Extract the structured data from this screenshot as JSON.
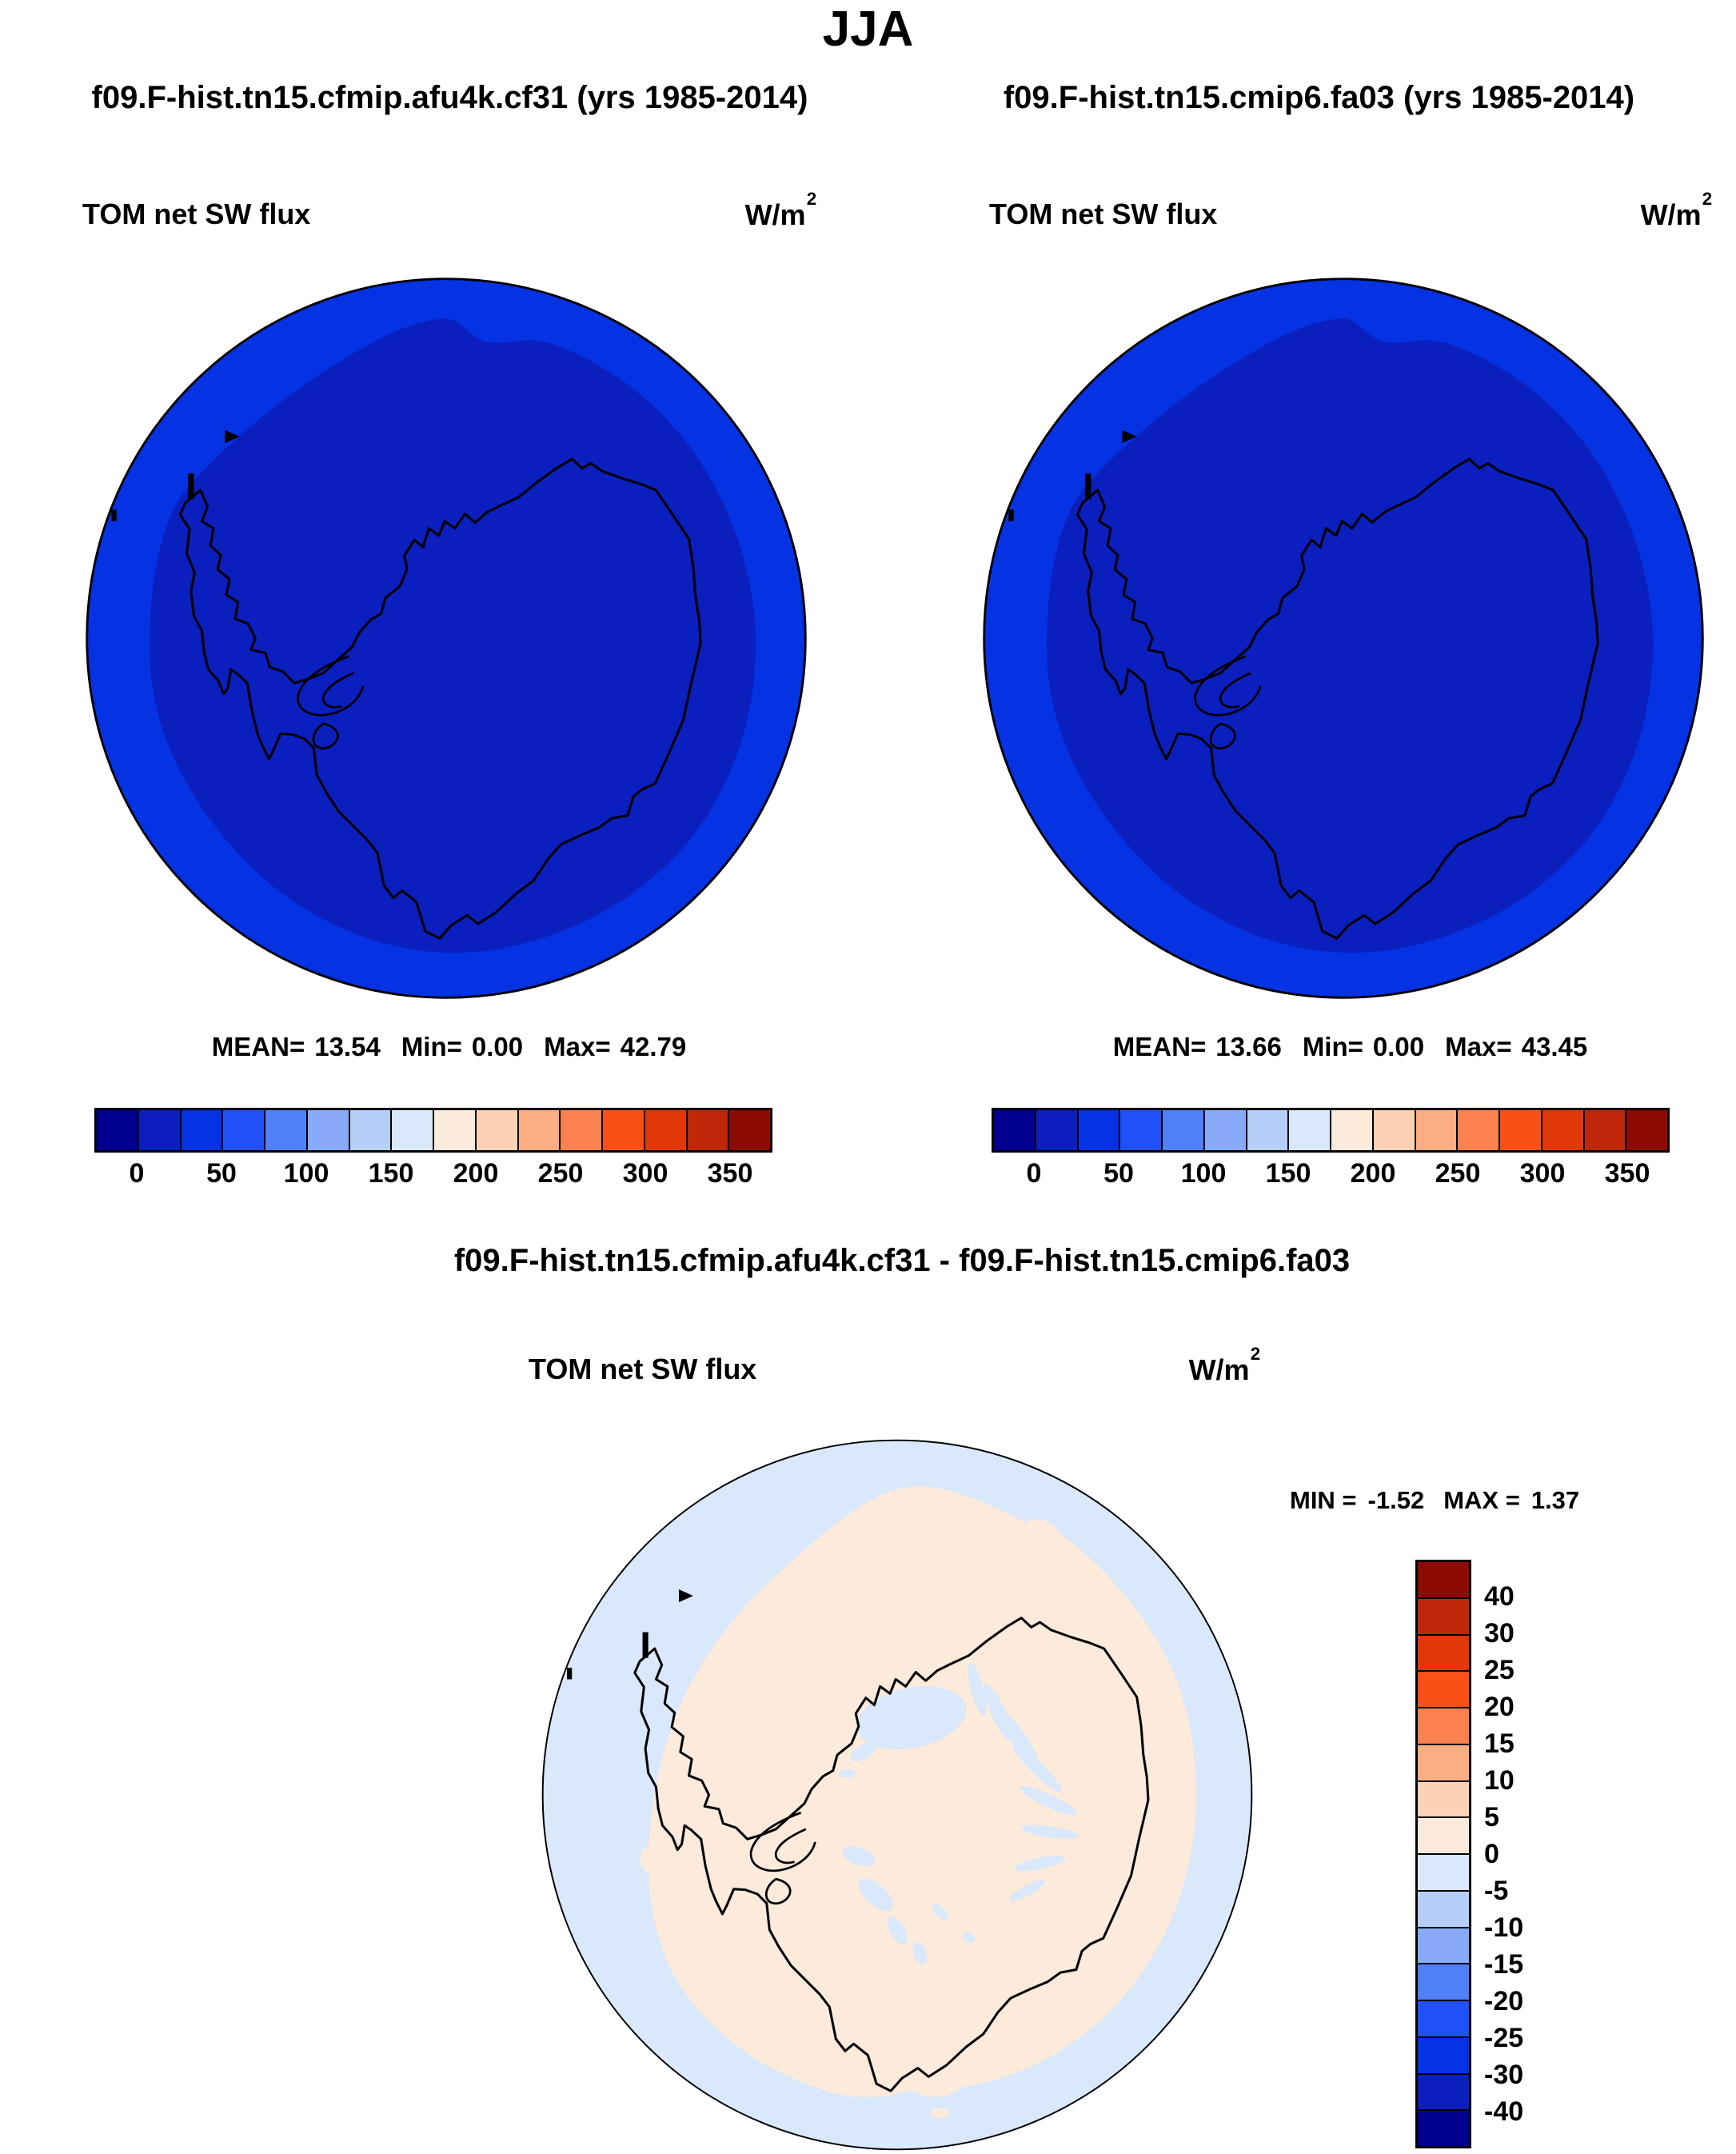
{
  "page_title": "JJA",
  "panels": [
    {
      "id": "model_a",
      "subtitle": "f09.F-hist.tn15.cfmip.afu4k.cf31 (yrs 1985-2014)",
      "var_label": "TOM net SW flux",
      "units_base": "W/m",
      "units_exp": "2",
      "stats": {
        "mean_label": "MEAN=",
        "mean": "13.54",
        "min_label": "Min=",
        "min": "0.00",
        "max_label": "Max=",
        "max": "42.79"
      },
      "colorbar_ticks": [
        "0",
        "50",
        "100",
        "150",
        "200",
        "250",
        "300",
        "350"
      ]
    },
    {
      "id": "model_b",
      "subtitle": "f09.F-hist.tn15.cmip6.fa03 (yrs 1985-2014)",
      "var_label": "TOM net SW flux",
      "units_base": "W/m",
      "units_exp": "2",
      "stats": {
        "mean_label": "MEAN=",
        "mean": "13.66",
        "min_label": "Min=",
        "min": "0.00",
        "max_label": "Max=",
        "max": "43.45"
      },
      "colorbar_ticks": [
        "0",
        "50",
        "100",
        "150",
        "200",
        "250",
        "300",
        "350"
      ]
    }
  ],
  "difference": {
    "title": "f09.F-hist.tn15.cfmip.afu4k.cf31 - f09.F-hist.tn15.cmip6.fa03",
    "var_label": "TOM net SW flux",
    "units_base": "W/m",
    "units_exp": "2",
    "stats": {
      "min_label": "MIN =",
      "min": "-1.52",
      "max_label": "MAX =",
      "max": "1.37"
    },
    "colorbar_labels": [
      "40",
      "30",
      "25",
      "20",
      "15",
      "10",
      "5",
      "0",
      "-5",
      "-10",
      "-15",
      "-20",
      "-25",
      "-30",
      "-40"
    ]
  },
  "palette": {
    "diverging_blue_to_red": [
      "#000090",
      "#0A1FBE",
      "#0533E3",
      "#2050F8",
      "#5080F8",
      "#88AAF8",
      "#B5CFF8",
      "#D9E8FB",
      "#FCEADB",
      "#FBD2B4",
      "#FCAE83",
      "#FC8150",
      "#FA5018",
      "#E23708",
      "#C02708",
      "#8E0B04"
    ],
    "map_interior_index": 1,
    "map_ring_index": 2,
    "diff_positive_index": 8,
    "diff_negative_index": 7,
    "coast_outline": "#000000"
  },
  "chart_data": [
    {
      "type": "heatmap",
      "subtype": "south-polar-stereographic-map",
      "title": "f09.F-hist.tn15.cfmip.afu4k.cf31 (yrs 1985-2014)",
      "season": "JJA",
      "variable": "TOM net SW flux",
      "units": "W/m2",
      "mean": 13.54,
      "min": 0.0,
      "max": 42.79,
      "colorbar_levels": [
        0,
        25,
        50,
        75,
        100,
        125,
        150,
        175,
        200,
        225,
        250,
        275,
        300,
        325,
        350
      ],
      "legend_position": "bottom",
      "description": "Interior of map (Antarctica and surrounding ocean) in 0-25 W/m2 dark blue; brighter blue 25-50 W/m2 annulus near the map edge; winter darkness gives near-zero shortwave flux."
    },
    {
      "type": "heatmap",
      "subtype": "south-polar-stereographic-map",
      "title": "f09.F-hist.tn15.cmip6.fa03 (yrs 1985-2014)",
      "season": "JJA",
      "variable": "TOM net SW flux",
      "units": "W/m2",
      "mean": 13.66,
      "min": 0.0,
      "max": 43.45,
      "colorbar_levels": [
        0,
        25,
        50,
        75,
        100,
        125,
        150,
        175,
        200,
        225,
        250,
        275,
        300,
        325,
        350
      ],
      "legend_position": "bottom",
      "description": "Same pattern as left panel: 0-25 W/m2 over interior, 25-50 W/m2 ring at the outer edge of the domain."
    },
    {
      "type": "heatmap",
      "subtype": "south-polar-stereographic-difference-map",
      "title": "f09.F-hist.tn15.cfmip.afu4k.cf31 - f09.F-hist.tn15.cmip6.fa03",
      "season": "JJA",
      "variable": "TOM net SW flux",
      "units": "W/m2",
      "min": -1.52,
      "max": 1.37,
      "colorbar_levels": [
        -40,
        -30,
        -25,
        -20,
        -15,
        -10,
        -5,
        0,
        5,
        10,
        15,
        20,
        25,
        30,
        40
      ],
      "legend_position": "right",
      "description": "Differences all within ±5 W/m2: weak positive (0 to 5, pale cream) over the continent/interior, weak negative (-5 to 0, pale blue) over the surrounding ocean ring and in streaky patches over East Antarctica."
    }
  ]
}
